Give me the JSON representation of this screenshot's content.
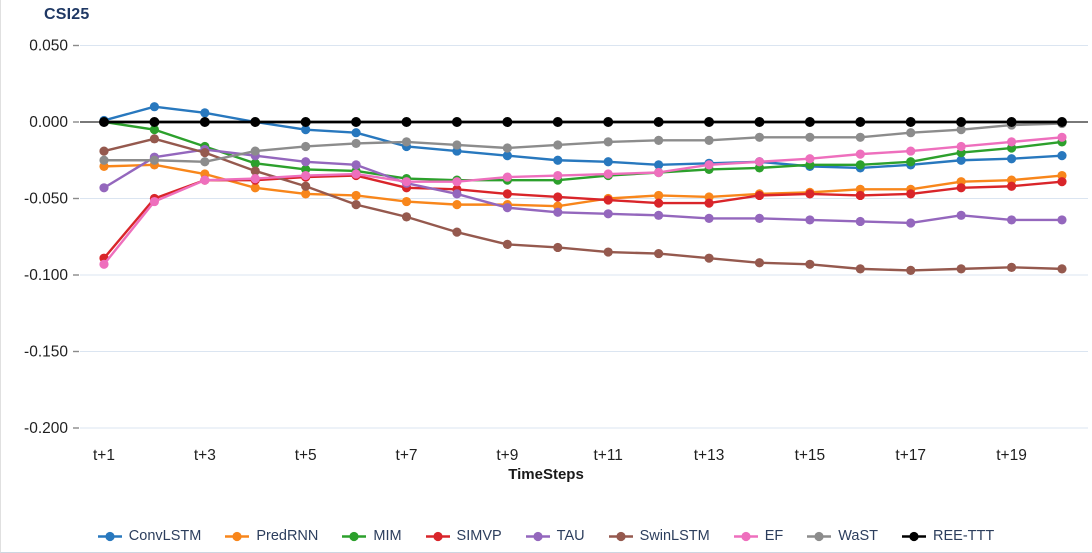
{
  "chart": {
    "title": "CSI25",
    "x_axis_title": "TimeSteps"
  },
  "colors": {
    "gridline": "#dbe5f1",
    "zero_line": "#4d4d4d",
    "tick": "#8a8a8a",
    "axis_label": "#1f1f1f",
    "title": "#1f3864",
    "legend_text": "#2c3e5d",
    "background": "#ffffff"
  },
  "chart_data": {
    "type": "line",
    "title": "CSI25",
    "xlabel": "TimeSteps",
    "ylabel": "",
    "x": [
      "t+1",
      "t+2",
      "t+3",
      "t+4",
      "t+5",
      "t+6",
      "t+7",
      "t+8",
      "t+9",
      "t+10",
      "t+11",
      "t+12",
      "t+13",
      "t+14",
      "t+15",
      "t+16",
      "t+17",
      "t+18",
      "t+19",
      "t+20"
    ],
    "x_tick_every": 2,
    "y_ticks": [
      "0.050",
      "0.000",
      "-0.050",
      "-0.100",
      "-0.150",
      "-0.200"
    ],
    "ylim": [
      -0.2,
      0.05
    ],
    "grid": true,
    "legend_position": "bottom",
    "series": [
      {
        "name": "ConvLSTM",
        "color": "#2878be",
        "values": [
          0.001,
          0.01,
          0.006,
          0.0,
          -0.005,
          -0.007,
          -0.016,
          -0.019,
          -0.022,
          -0.025,
          -0.026,
          -0.028,
          -0.027,
          -0.026,
          -0.029,
          -0.03,
          -0.028,
          -0.025,
          -0.024,
          -0.022
        ]
      },
      {
        "name": "PredRNN",
        "color": "#f8861b",
        "values": [
          -0.029,
          -0.028,
          -0.034,
          -0.043,
          -0.047,
          -0.048,
          -0.052,
          -0.054,
          -0.054,
          -0.055,
          -0.05,
          -0.048,
          -0.049,
          -0.047,
          -0.046,
          -0.044,
          -0.044,
          -0.039,
          -0.038,
          -0.035
        ]
      },
      {
        "name": "MIM",
        "color": "#2ca02c",
        "values": [
          0.0,
          -0.005,
          -0.016,
          -0.027,
          -0.031,
          -0.032,
          -0.037,
          -0.038,
          -0.038,
          -0.038,
          -0.035,
          -0.033,
          -0.031,
          -0.03,
          -0.028,
          -0.028,
          -0.026,
          -0.02,
          -0.017,
          -0.013
        ]
      },
      {
        "name": "SIMVP",
        "color": "#d9252a",
        "values": [
          -0.089,
          -0.05,
          -0.038,
          -0.038,
          -0.036,
          -0.035,
          -0.043,
          -0.044,
          -0.047,
          -0.049,
          -0.051,
          -0.053,
          -0.053,
          -0.048,
          -0.047,
          -0.048,
          -0.047,
          -0.043,
          -0.042,
          -0.039
        ]
      },
      {
        "name": "TAU",
        "color": "#9467bd",
        "values": [
          -0.043,
          -0.023,
          -0.018,
          -0.022,
          -0.026,
          -0.028,
          -0.04,
          -0.047,
          -0.056,
          -0.059,
          -0.06,
          -0.061,
          -0.063,
          -0.063,
          -0.064,
          -0.065,
          -0.066,
          -0.061,
          -0.064,
          -0.064
        ]
      },
      {
        "name": "SwinLSTM",
        "color": "#95594e",
        "values": [
          -0.019,
          -0.011,
          -0.02,
          -0.032,
          -0.042,
          -0.054,
          -0.062,
          -0.072,
          -0.08,
          -0.082,
          -0.085,
          -0.086,
          -0.089,
          -0.092,
          -0.093,
          -0.096,
          -0.097,
          -0.096,
          -0.095,
          -0.096
        ]
      },
      {
        "name": "EF",
        "color": "#ee6fbd",
        "values": [
          -0.093,
          -0.052,
          -0.038,
          -0.037,
          -0.035,
          -0.034,
          -0.039,
          -0.039,
          -0.036,
          -0.035,
          -0.034,
          -0.033,
          -0.028,
          -0.026,
          -0.024,
          -0.021,
          -0.019,
          -0.016,
          -0.013,
          -0.01
        ]
      },
      {
        "name": "WaST",
        "color": "#8c8c8c",
        "values": [
          -0.025,
          -0.025,
          -0.026,
          -0.019,
          -0.016,
          -0.014,
          -0.013,
          -0.015,
          -0.017,
          -0.015,
          -0.013,
          -0.012,
          -0.012,
          -0.01,
          -0.01,
          -0.01,
          -0.007,
          -0.005,
          -0.002,
          -0.001
        ]
      },
      {
        "name": "REE-TTT",
        "color": "#000000",
        "values": [
          0.0,
          0.0,
          0.0,
          0.0,
          0.0,
          0.0,
          0.0,
          0.0,
          0.0,
          0.0,
          0.0,
          0.0,
          0.0,
          0.0,
          0.0,
          0.0,
          0.0,
          0.0,
          0.0,
          0.0
        ]
      }
    ]
  }
}
